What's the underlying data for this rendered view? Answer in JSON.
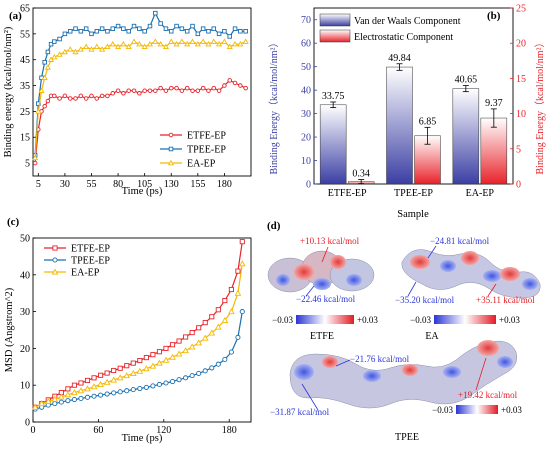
{
  "figure": {
    "panels": [
      "(a)",
      "(b)",
      "(c)",
      "(d)"
    ]
  },
  "chart_data": [
    {
      "panel": "(a)",
      "type": "line",
      "xlabel": "Time (ps)",
      "ylabel": "Binding energy (kcal/mol/nm²)",
      "xlim": [
        0,
        205
      ],
      "ylim": [
        0,
        65
      ],
      "xticks": [
        5,
        30,
        55,
        80,
        105,
        130,
        155,
        180
      ],
      "yticks": [
        5,
        15,
        25,
        35,
        45,
        55,
        65
      ],
      "legend_position": "bottom-right",
      "series": [
        {
          "name": "ETFE-EP",
          "color": "#e8232a",
          "marker": "circle",
          "x": [
            2,
            5,
            8,
            11,
            14,
            17,
            20,
            25,
            30,
            35,
            40,
            45,
            50,
            55,
            60,
            65,
            70,
            75,
            80,
            85,
            90,
            95,
            100,
            105,
            110,
            115,
            120,
            125,
            130,
            135,
            140,
            145,
            150,
            155,
            160,
            165,
            170,
            175,
            180,
            185,
            190,
            195,
            200
          ],
          "values": [
            5,
            18,
            25,
            27,
            29,
            31,
            31,
            30,
            31,
            30,
            30,
            31,
            30,
            31,
            30,
            31,
            31,
            32,
            33,
            32,
            33,
            33,
            32,
            33,
            33,
            33,
            34,
            33,
            34,
            34,
            33,
            34,
            33,
            33,
            34,
            33,
            34,
            33,
            35,
            37,
            36,
            35,
            34
          ]
        },
        {
          "name": "TPEE-EP",
          "color": "#1a6fb0",
          "marker": "square",
          "x": [
            2,
            5,
            8,
            11,
            14,
            17,
            20,
            25,
            30,
            35,
            40,
            45,
            50,
            55,
            60,
            65,
            70,
            75,
            80,
            85,
            90,
            95,
            100,
            105,
            110,
            115,
            120,
            125,
            130,
            135,
            140,
            145,
            150,
            155,
            160,
            165,
            170,
            175,
            180,
            185,
            190,
            195,
            200
          ],
          "values": [
            8,
            28,
            38,
            44,
            48,
            51,
            52,
            53,
            55,
            56,
            57,
            56,
            57,
            55,
            56,
            57,
            56,
            57,
            58,
            57,
            56,
            58,
            57,
            56,
            58,
            63,
            59,
            57,
            56,
            58,
            57,
            56,
            58,
            55,
            57,
            56,
            57,
            55,
            56,
            54,
            57,
            56,
            56
          ]
        },
        {
          "name": "EA-EP",
          "color": "#f5b800",
          "marker": "triangle",
          "x": [
            2,
            5,
            8,
            11,
            14,
            17,
            20,
            25,
            30,
            35,
            40,
            45,
            50,
            55,
            60,
            65,
            70,
            75,
            80,
            85,
            90,
            95,
            100,
            105,
            110,
            115,
            120,
            125,
            130,
            135,
            140,
            145,
            150,
            155,
            160,
            165,
            170,
            175,
            180,
            185,
            190,
            195,
            200
          ],
          "values": [
            7,
            25,
            33,
            38,
            42,
            45,
            46,
            47,
            48,
            49,
            48,
            49,
            50,
            49,
            50,
            49,
            50,
            51,
            50,
            51,
            50,
            52,
            51,
            50,
            51,
            52,
            51,
            50,
            52,
            51,
            52,
            51,
            52,
            51,
            52,
            51,
            52,
            51,
            52,
            50,
            51,
            51,
            52
          ]
        }
      ]
    },
    {
      "panel": "(b)",
      "type": "bar",
      "xlabel": "Sample",
      "ylabel": "Binding Energy（kcal/mol/nm²）",
      "ylabel_right": "Binding Energy（kcal/mol/nm²）",
      "ylim": [
        0,
        75
      ],
      "ylim_right": [
        0,
        25
      ],
      "yticks": [
        0,
        10,
        20,
        30,
        40,
        50,
        60,
        70
      ],
      "yticks_right": [
        0,
        5,
        10,
        15,
        20,
        25
      ],
      "categories": [
        "ETFE-EP",
        "TPEE-EP",
        "EA-EP"
      ],
      "legend_position": "top",
      "series": [
        {
          "name": "Van der Waals Component",
          "axis": "left",
          "color": "#3b3fa3",
          "values": [
            33.75,
            49.84,
            40.65
          ],
          "errors": [
            1.2,
            1.4,
            1.3
          ],
          "labels": [
            "33.75",
            "49.84",
            "40.65"
          ]
        },
        {
          "name": "Electrostatic Component",
          "axis": "right",
          "color": "#e8232a",
          "values": [
            0.34,
            6.85,
            9.37
          ],
          "errors": [
            0.3,
            1.2,
            1.3
          ],
          "labels": [
            "0.34",
            "6.85",
            "9.37"
          ]
        }
      ]
    },
    {
      "panel": "(c)",
      "type": "line",
      "xlabel": "Time (ps)",
      "ylabel": "MSD (Angstrom^2)",
      "xlim": [
        0,
        200
      ],
      "ylim": [
        0,
        50
      ],
      "xticks": [
        0,
        60,
        120,
        180
      ],
      "yticks": [
        0,
        10,
        20,
        30,
        40,
        50
      ],
      "legend_position": "top-left",
      "series": [
        {
          "name": "ETFE-EP",
          "color": "#e8232a",
          "marker": "square",
          "x": [
            2,
            8,
            14,
            20,
            26,
            32,
            38,
            44,
            50,
            56,
            62,
            68,
            74,
            80,
            86,
            92,
            98,
            104,
            110,
            116,
            122,
            128,
            134,
            140,
            146,
            152,
            158,
            164,
            170,
            176,
            182,
            188,
            192
          ],
          "values": [
            4,
            5,
            6,
            7,
            8,
            9,
            10,
            10.6,
            11.3,
            12,
            12.7,
            13.3,
            14,
            14.6,
            15.3,
            16,
            16.7,
            17.5,
            18.3,
            19.1,
            20,
            21,
            22,
            23.1,
            24.3,
            25.6,
            27,
            28.6,
            30.5,
            33,
            36,
            41,
            49
          ]
        },
        {
          "name": "TPEE-EP",
          "color": "#1a6fb0",
          "marker": "circle",
          "x": [
            2,
            8,
            14,
            20,
            26,
            32,
            38,
            44,
            50,
            56,
            62,
            68,
            74,
            80,
            86,
            92,
            98,
            104,
            110,
            116,
            122,
            128,
            134,
            140,
            146,
            152,
            158,
            164,
            170,
            176,
            182,
            188,
            192
          ],
          "values": [
            3.5,
            4,
            4.6,
            5,
            5.4,
            5.8,
            6.1,
            6.4,
            6.7,
            7,
            7.3,
            7.6,
            7.9,
            8.2,
            8.5,
            8.8,
            9.1,
            9.4,
            9.8,
            10.2,
            10.6,
            11,
            11.5,
            12,
            12.6,
            13.2,
            13.9,
            14.7,
            15.7,
            17,
            19,
            23,
            30
          ]
        },
        {
          "name": "EA-EP",
          "color": "#f5b800",
          "marker": "triangle",
          "x": [
            2,
            8,
            14,
            20,
            26,
            32,
            38,
            44,
            50,
            56,
            62,
            68,
            74,
            80,
            86,
            92,
            98,
            104,
            110,
            116,
            122,
            128,
            134,
            140,
            146,
            152,
            158,
            164,
            170,
            176,
            182,
            188,
            192
          ],
          "values": [
            4,
            5,
            5.6,
            6.2,
            6.8,
            7.4,
            8,
            8.5,
            9,
            9.6,
            10.2,
            10.8,
            11.4,
            12,
            12.6,
            13.2,
            13.8,
            14.5,
            15.2,
            16,
            16.8,
            17.6,
            18.5,
            19.4,
            20.4,
            21.5,
            22.8,
            24.2,
            25.8,
            27.6,
            30,
            35,
            43
          ]
        }
      ]
    }
  ],
  "panel_d": {
    "etfe": {
      "label": "ETFE",
      "ann_top": "+10.13 kcal/mol",
      "ann_bottom": "−22.46 kcal/mol",
      "scale_min": "−0.03",
      "scale_max": "+0.03"
    },
    "ea": {
      "label": "EA",
      "ann_top": "−24.81 kcal/mol",
      "ann_left": "−35.20 kcal/mol",
      "ann_right": "+35.11 kcal/mol",
      "scale_min": "−0.03",
      "scale_max": "+0.03"
    },
    "tpee": {
      "label": "TPEE",
      "ann_top": "−21.76 kcal/mol",
      "ann_right": "+19.42 kcal/mol",
      "ann_left": "−31.87 kcal/mol",
      "scale_min": "−0.03",
      "scale_max": "+0.03"
    }
  }
}
